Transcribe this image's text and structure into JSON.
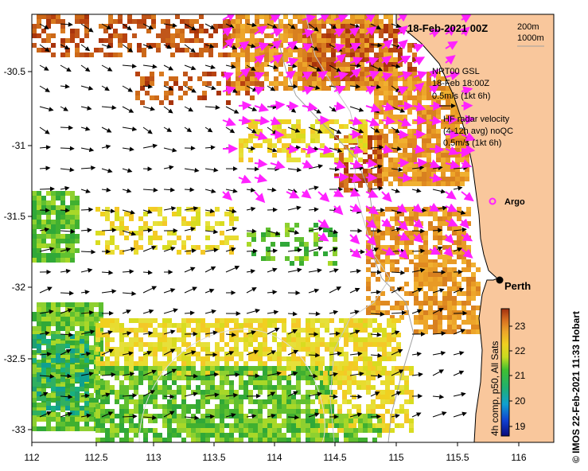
{
  "map": {
    "title": "18-Feb-2021 00Z",
    "depth_legend": {
      "contour_1": "200m",
      "contour_2": "1000m"
    },
    "gsl_legend": {
      "line1": "NRT00 GSL",
      "line2": "18-Feb 18:00Z",
      "line3": "0.5m/s (1kt 6h)"
    },
    "radar_legend": {
      "line1": "HF radar velocity",
      "line2": "(4-12h avg) noQC",
      "line3": "0.5m/s (1kt 6h)"
    },
    "argo_label": "Argo",
    "place_label": "Perth",
    "colorbar": {
      "label": "4h comp, p50, All Sats",
      "ticks": [
        "23",
        "22",
        "21",
        "20",
        "19"
      ]
    },
    "credit": "© IMOS 22-Feb-2021 11:33 Hobart",
    "x_ticks": [
      "112",
      "112.5",
      "113",
      "113.5",
      "114",
      "114.5",
      "115",
      "115.5",
      "116"
    ],
    "y_ticks": [
      "-30.5",
      "-31",
      "-31.5",
      "-32",
      "-32.5",
      "-33"
    ],
    "colors": {
      "land": "#f9c79c",
      "gsl_arrow": "#000000",
      "radar_arrow": "#ff22ff",
      "sst_warm": "#b8420f",
      "sst_mid": "#e8a21c",
      "sst_cool": "#38b028"
    }
  }
}
